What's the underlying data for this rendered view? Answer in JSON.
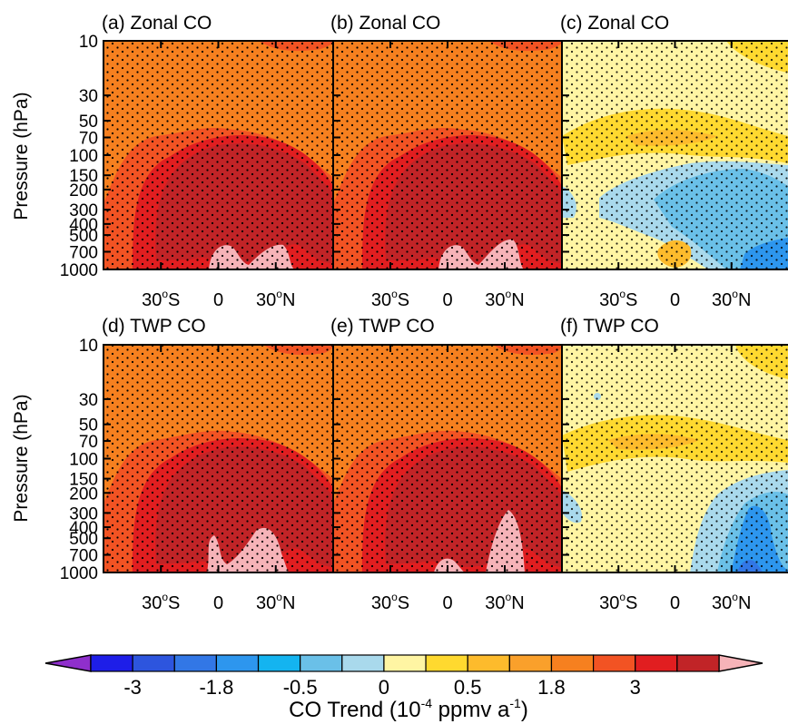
{
  "chart_data": [
    {
      "type": "heatmap",
      "title": "(a) Zonal CO",
      "ylabel": "Pressure (hPa)",
      "yscale": "log",
      "ylim": [
        1000,
        10
      ],
      "y_ticks": [
        "10",
        "30",
        "50",
        "70",
        "100",
        "150",
        "200",
        "300",
        "400",
        "500",
        "700",
        "1000"
      ],
      "x_ticks": [
        "30°S",
        "0",
        "30°N"
      ],
      "stippled": true,
      "field": "strong positive (~1.8 background, >3 upper troposphere)"
    },
    {
      "type": "heatmap",
      "title": "(b) Zonal CO",
      "ylabel": "",
      "yscale": "log",
      "ylim": [
        1000,
        10
      ],
      "x_ticks": [
        "30°S",
        "0",
        "30°N"
      ],
      "stippled": true,
      "field": "strong positive (~1.8 background, >3 upper troposphere)"
    },
    {
      "type": "heatmap",
      "title": "(c) Zonal CO",
      "ylabel": "",
      "yscale": "log",
      "ylim": [
        1000,
        10
      ],
      "x_ticks": [
        "30°S",
        "0",
        "30°N"
      ],
      "stippled": true,
      "field": "weak; positive 0.5 band near 70 hPa, negative -0.5 to -1.8 in NH troposphere"
    },
    {
      "type": "heatmap",
      "title": "(d) TWP CO",
      "ylabel": "Pressure (hPa)",
      "yscale": "log",
      "ylim": [
        1000,
        10
      ],
      "y_ticks": [
        "10",
        "30",
        "50",
        "70",
        "100",
        "150",
        "200",
        "300",
        "400",
        "500",
        "700",
        "1000"
      ],
      "x_ticks": [
        "30°S",
        "0",
        "30°N"
      ],
      "stippled": true,
      "field": "strong positive (~1.8 background, >3 upper troposphere)"
    },
    {
      "type": "heatmap",
      "title": "(e) TWP CO",
      "ylabel": "",
      "yscale": "log",
      "ylim": [
        1000,
        10
      ],
      "x_ticks": [
        "30°S",
        "0",
        "30°N"
      ],
      "stippled": true,
      "field": "strong positive (~1.8 background, >3 upper troposphere)"
    },
    {
      "type": "heatmap",
      "title": "(f) TWP CO",
      "ylabel": "",
      "yscale": "log",
      "ylim": [
        1000,
        10
      ],
      "x_ticks": [
        "30°S",
        "0",
        "30°N"
      ],
      "stippled": true,
      "field": "weak; positive 0.5 band near 70 hPa, negative -0.5 to -3 in NH lower troposphere"
    }
  ],
  "colorbar": {
    "label_main": "CO Trend (10",
    "label_exp": "-4",
    "label_unit": " ppmv a",
    "label_unit_exp": "-1",
    "label_close": ")",
    "tick_labels": [
      "-3",
      "-1.8",
      "-0.5",
      "0",
      "0.5",
      "1.8",
      "3"
    ],
    "colors": [
      "#1e1ee8",
      "#2d55de",
      "#3277e6",
      "#2d96ee",
      "#14b4f0",
      "#6ac0e8",
      "#a9d9ec",
      "#fff5a3",
      "#ffd92f",
      "#fdbb2c",
      "#faa02b",
      "#f6801f",
      "#f25323",
      "#e11e20",
      "#c12427"
    ],
    "under_color": "#8f2fcc",
    "over_color": "#f6b3b8"
  }
}
